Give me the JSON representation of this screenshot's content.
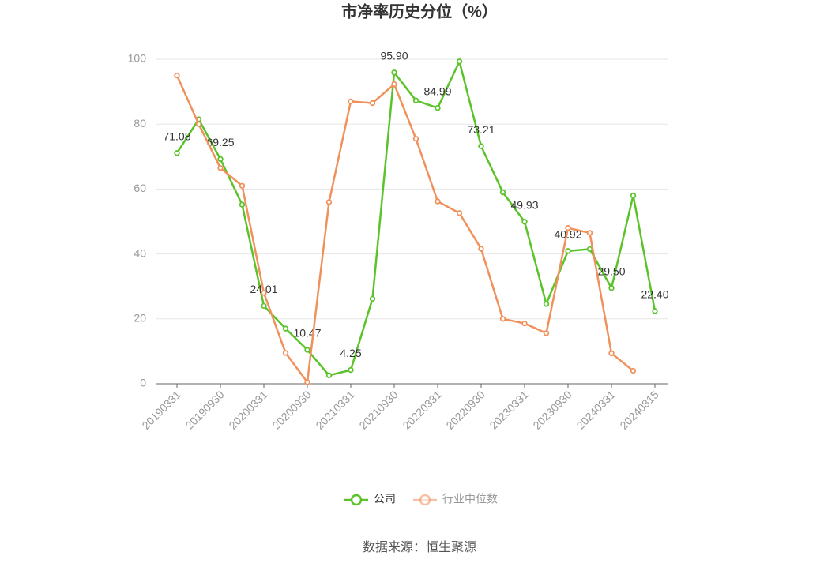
{
  "chart_data": {
    "type": "line",
    "title": "市净率历史分位（%）",
    "categories": [
      "20190331",
      null,
      "20190930",
      null,
      "20200331",
      null,
      "20200930",
      null,
      "20210331",
      null,
      "20210930",
      null,
      "20220331",
      null,
      "20220930",
      null,
      "20230331",
      null,
      "20230930",
      null,
      "20240331",
      null,
      "20240815"
    ],
    "series": [
      {
        "name": "公司",
        "color": "#5bc32a",
        "values": [
          71.08,
          81.5,
          69.25,
          55.2,
          24.01,
          17,
          10.47,
          2.6,
          4.25,
          26.2,
          95.9,
          87.3,
          84.99,
          99.3,
          73.21,
          59,
          49.93,
          24.6,
          40.92,
          41.5,
          29.5,
          58,
          22.4
        ],
        "value_labels": [
          "71.08",
          null,
          "69.25",
          null,
          "24.01",
          null,
          "10.47",
          null,
          "4.25",
          null,
          "95.90",
          null,
          "84.99",
          null,
          "73.21",
          null,
          "49.93",
          null,
          "40.92",
          null,
          "29.50",
          null,
          "22.40"
        ]
      },
      {
        "name": "行业中位数",
        "color": "#f0915c",
        "values": [
          95,
          80,
          66.5,
          61,
          28,
          9.5,
          0.5,
          56,
          87,
          86.5,
          92.3,
          75.5,
          56.2,
          52.6,
          41.6,
          20,
          18.6,
          15.6,
          48,
          46.5,
          9.4,
          4,
          null
        ]
      }
    ],
    "ylim": [
      0,
      100
    ],
    "yticks": [
      0,
      20,
      40,
      60,
      80,
      100
    ],
    "grid": true,
    "legend": "bottom",
    "source": "数据来源：恒生聚源"
  }
}
